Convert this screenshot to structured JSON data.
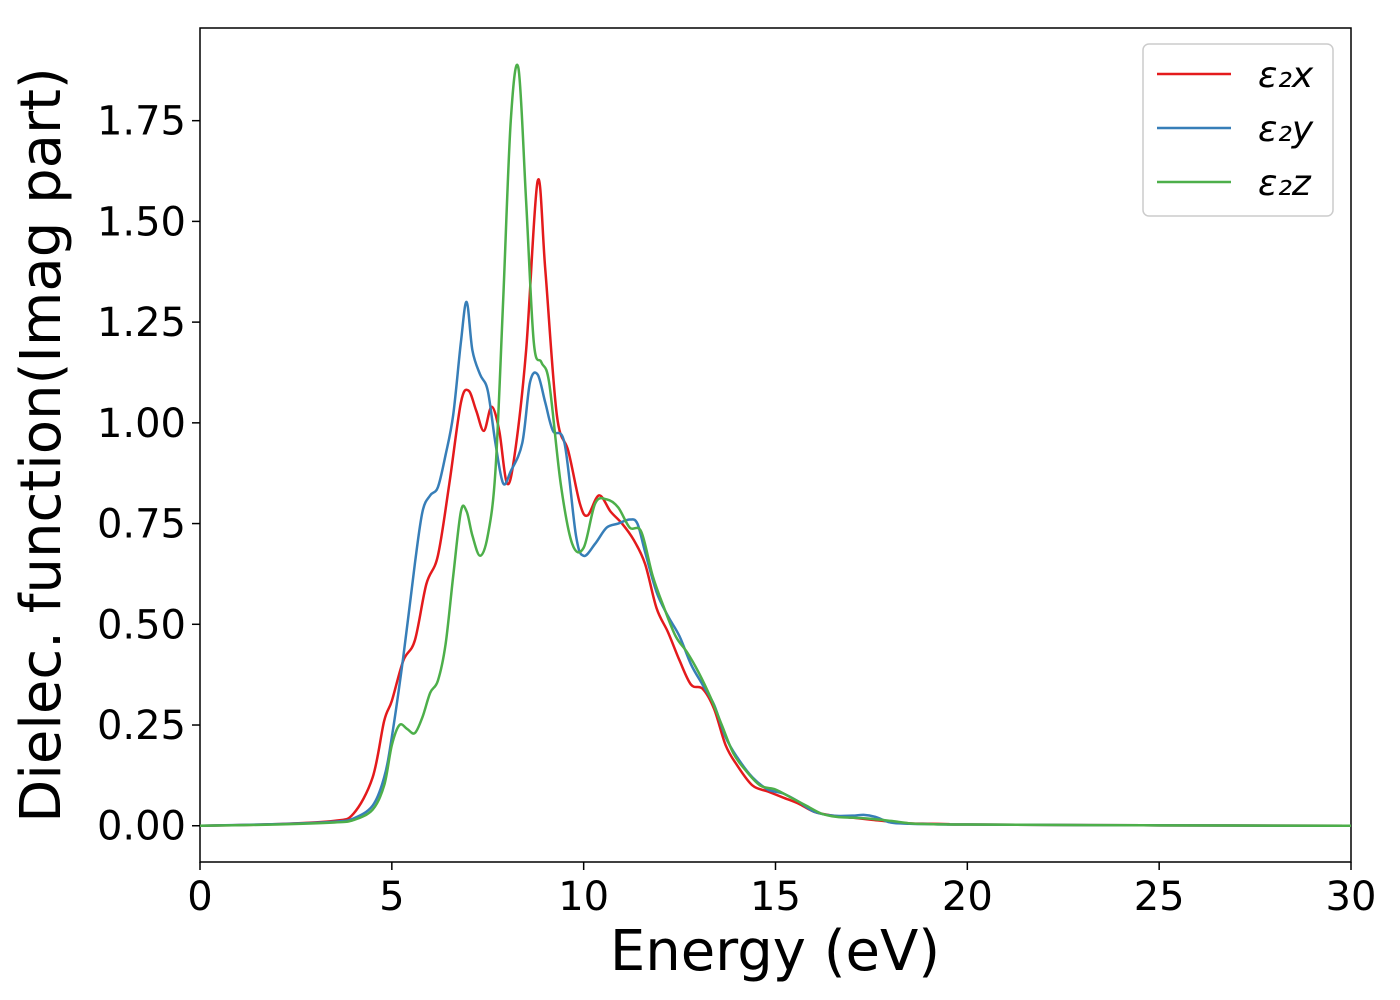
{
  "chart_data": {
    "type": "line",
    "title": "",
    "xlabel": "Energy (eV)",
    "ylabel": "Dielec. function(Imag part)",
    "xlim": [
      0,
      30
    ],
    "ylim": [
      -0.09,
      1.98
    ],
    "xticks": [
      0,
      5,
      10,
      15,
      20,
      25,
      30
    ],
    "xtick_labels": [
      "0",
      "5",
      "10",
      "15",
      "20",
      "25",
      "30"
    ],
    "yticks": [
      0,
      0.25,
      0.5,
      0.75,
      1.0,
      1.25,
      1.5,
      1.75
    ],
    "ytick_labels": [
      "0.00",
      "0.25",
      "0.50",
      "0.75",
      "1.00",
      "1.25",
      "1.50",
      "1.75"
    ],
    "grid": false,
    "legend_position": "top-right",
    "series": [
      {
        "name": "ε₂x",
        "color": "#e41a1c",
        "x": [
          0,
          2,
          3.5,
          4.0,
          4.5,
          4.8,
          5.0,
          5.3,
          5.6,
          5.9,
          6.2,
          6.5,
          6.8,
          7.0,
          7.2,
          7.4,
          7.6,
          7.8,
          8.0,
          8.2,
          8.5,
          8.8,
          9.0,
          9.3,
          9.6,
          9.9,
          10.1,
          10.4,
          10.7,
          11.0,
          11.3,
          11.6,
          11.9,
          12.2,
          12.5,
          12.8,
          13.1,
          13.4,
          13.7,
          14.0,
          14.4,
          14.8,
          15.2,
          15.6,
          16.0,
          16.5,
          17.0,
          17.5,
          18.0,
          18.5,
          19.0,
          19.5,
          20,
          25,
          30
        ],
        "y": [
          0,
          0.004,
          0.012,
          0.03,
          0.12,
          0.26,
          0.31,
          0.41,
          0.46,
          0.6,
          0.67,
          0.85,
          1.05,
          1.08,
          1.03,
          0.98,
          1.04,
          0.98,
          0.85,
          0.92,
          1.18,
          1.6,
          1.38,
          1.02,
          0.93,
          0.8,
          0.77,
          0.82,
          0.78,
          0.75,
          0.71,
          0.65,
          0.54,
          0.48,
          0.41,
          0.35,
          0.34,
          0.29,
          0.2,
          0.15,
          0.1,
          0.085,
          0.07,
          0.055,
          0.035,
          0.025,
          0.02,
          0.015,
          0.01,
          0.006,
          0.005,
          0.004,
          0.003,
          0.001,
          0.0
        ]
      },
      {
        "name": "ε₂y",
        "color": "#377eb8",
        "x": [
          0,
          2,
          3.5,
          4.0,
          4.5,
          4.8,
          5.0,
          5.3,
          5.6,
          5.8,
          6.0,
          6.2,
          6.4,
          6.6,
          6.8,
          6.95,
          7.1,
          7.3,
          7.5,
          7.7,
          7.9,
          8.1,
          8.4,
          8.6,
          8.8,
          9.0,
          9.2,
          9.5,
          9.8,
          10.0,
          10.3,
          10.6,
          10.9,
          11.2,
          11.4,
          11.6,
          11.9,
          12.2,
          12.5,
          12.8,
          13.1,
          13.4,
          13.7,
          14.0,
          14.4,
          14.8,
          15.2,
          15.6,
          16.0,
          16.5,
          17.0,
          17.3,
          17.6,
          18.0,
          18.5,
          19.0,
          20,
          25,
          30
        ],
        "y": [
          0,
          0.004,
          0.01,
          0.018,
          0.05,
          0.12,
          0.22,
          0.42,
          0.65,
          0.78,
          0.82,
          0.84,
          0.92,
          1.02,
          1.2,
          1.3,
          1.18,
          1.12,
          1.08,
          0.95,
          0.85,
          0.88,
          0.95,
          1.1,
          1.12,
          1.05,
          0.98,
          0.95,
          0.72,
          0.67,
          0.7,
          0.74,
          0.75,
          0.76,
          0.75,
          0.68,
          0.58,
          0.52,
          0.47,
          0.4,
          0.35,
          0.3,
          0.22,
          0.17,
          0.12,
          0.09,
          0.08,
          0.06,
          0.035,
          0.025,
          0.025,
          0.027,
          0.022,
          0.008,
          0.005,
          0.004,
          0.003,
          0.001,
          0.0
        ]
      },
      {
        "name": "ε₂z",
        "color": "#4daf4a",
        "x": [
          0,
          2,
          3.5,
          4.0,
          4.5,
          4.8,
          5.0,
          5.2,
          5.4,
          5.6,
          5.8,
          6.0,
          6.2,
          6.4,
          6.6,
          6.8,
          6.95,
          7.1,
          7.3,
          7.5,
          7.7,
          7.9,
          8.1,
          8.3,
          8.5,
          8.7,
          8.9,
          9.1,
          9.4,
          9.7,
          10.0,
          10.3,
          10.6,
          10.9,
          11.2,
          11.5,
          11.8,
          12.1,
          12.4,
          12.7,
          13.0,
          13.3,
          13.6,
          13.9,
          14.2,
          14.6,
          15.0,
          15.4,
          15.8,
          16.2,
          16.6,
          17.0,
          17.5,
          18.0,
          18.5,
          19.0,
          20,
          25,
          30
        ],
        "y": [
          0,
          0.003,
          0.008,
          0.014,
          0.04,
          0.1,
          0.2,
          0.25,
          0.24,
          0.23,
          0.27,
          0.33,
          0.36,
          0.45,
          0.62,
          0.78,
          0.78,
          0.72,
          0.67,
          0.72,
          0.88,
          1.3,
          1.75,
          1.88,
          1.55,
          1.2,
          1.15,
          1.1,
          0.85,
          0.7,
          0.69,
          0.8,
          0.81,
          0.79,
          0.74,
          0.73,
          0.62,
          0.54,
          0.47,
          0.43,
          0.38,
          0.32,
          0.25,
          0.18,
          0.14,
          0.1,
          0.09,
          0.07,
          0.05,
          0.03,
          0.022,
          0.02,
          0.017,
          0.012,
          0.006,
          0.004,
          0.003,
          0.001,
          0.0
        ]
      }
    ]
  }
}
